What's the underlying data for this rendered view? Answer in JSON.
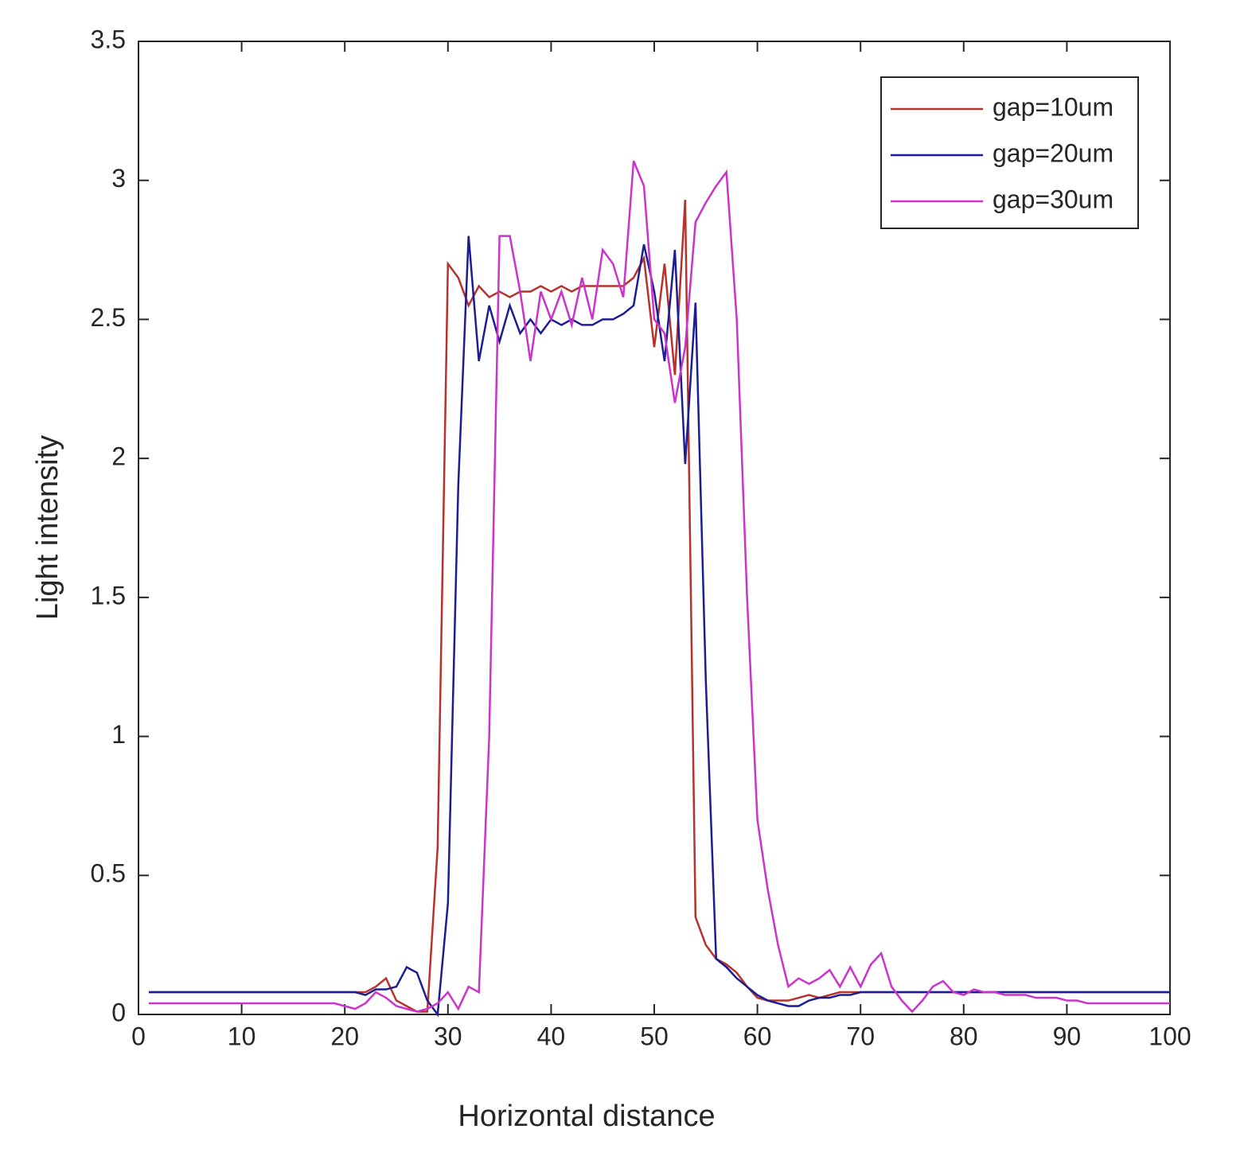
{
  "chart_data": {
    "type": "line",
    "xlabel": "Horizontal distance",
    "ylabel": "Light intensity",
    "x": [
      1,
      2,
      3,
      4,
      5,
      6,
      7,
      8,
      9,
      10,
      11,
      12,
      13,
      14,
      15,
      16,
      17,
      18,
      19,
      20,
      21,
      22,
      23,
      24,
      25,
      26,
      27,
      28,
      29,
      30,
      31,
      32,
      33,
      34,
      35,
      36,
      37,
      38,
      39,
      40,
      41,
      42,
      43,
      44,
      45,
      46,
      47,
      48,
      49,
      50,
      51,
      52,
      53,
      54,
      55,
      56,
      57,
      58,
      59,
      60,
      61,
      62,
      63,
      64,
      65,
      66,
      67,
      68,
      69,
      70,
      71,
      72,
      73,
      74,
      75,
      76,
      77,
      78,
      79,
      80,
      81,
      82,
      83,
      84,
      85,
      86,
      87,
      88,
      89,
      90,
      91,
      92,
      93,
      94,
      95,
      96,
      97,
      98,
      99,
      100
    ],
    "series": [
      {
        "name": "gap=10um",
        "color": "#b8322c",
        "values": [
          0.08,
          0.08,
          0.08,
          0.08,
          0.08,
          0.08,
          0.08,
          0.08,
          0.08,
          0.08,
          0.08,
          0.08,
          0.08,
          0.08,
          0.08,
          0.08,
          0.08,
          0.08,
          0.08,
          0.08,
          0.08,
          0.08,
          0.1,
          0.13,
          0.05,
          0.03,
          0.01,
          0.01,
          0.6,
          2.7,
          2.65,
          2.55,
          2.62,
          2.58,
          2.6,
          2.58,
          2.6,
          2.6,
          2.62,
          2.6,
          2.62,
          2.6,
          2.62,
          2.62,
          2.62,
          2.62,
          2.62,
          2.65,
          2.72,
          2.4,
          2.7,
          2.3,
          2.93,
          0.35,
          0.25,
          0.2,
          0.18,
          0.15,
          0.1,
          0.06,
          0.05,
          0.05,
          0.05,
          0.06,
          0.07,
          0.06,
          0.07,
          0.08,
          0.08,
          0.08,
          0.08,
          0.08,
          0.08,
          0.08,
          0.08,
          0.08,
          0.08,
          0.08,
          0.08,
          0.08,
          0.08,
          0.08,
          0.08,
          0.08,
          0.08,
          0.08,
          0.08,
          0.08,
          0.08,
          0.08,
          0.08,
          0.08,
          0.08,
          0.08,
          0.08,
          0.08,
          0.08,
          0.08,
          0.08,
          0.08
        ]
      },
      {
        "name": "gap=20um",
        "color": "#1c1c94",
        "values": [
          0.08,
          0.08,
          0.08,
          0.08,
          0.08,
          0.08,
          0.08,
          0.08,
          0.08,
          0.08,
          0.08,
          0.08,
          0.08,
          0.08,
          0.08,
          0.08,
          0.08,
          0.08,
          0.08,
          0.08,
          0.08,
          0.07,
          0.09,
          0.09,
          0.1,
          0.17,
          0.15,
          0.05,
          0.0,
          0.4,
          1.9,
          2.8,
          2.35,
          2.55,
          2.42,
          2.55,
          2.45,
          2.5,
          2.45,
          2.5,
          2.48,
          2.5,
          2.48,
          2.48,
          2.5,
          2.5,
          2.52,
          2.55,
          2.77,
          2.6,
          2.35,
          2.75,
          1.98,
          2.56,
          1.2,
          0.2,
          0.17,
          0.13,
          0.1,
          0.07,
          0.05,
          0.04,
          0.03,
          0.03,
          0.05,
          0.06,
          0.06,
          0.07,
          0.07,
          0.08,
          0.08,
          0.08,
          0.08,
          0.08,
          0.08,
          0.08,
          0.08,
          0.08,
          0.08,
          0.08,
          0.08,
          0.08,
          0.08,
          0.08,
          0.08,
          0.08,
          0.08,
          0.08,
          0.08,
          0.08,
          0.08,
          0.08,
          0.08,
          0.08,
          0.08,
          0.08,
          0.08,
          0.08,
          0.08,
          0.08
        ]
      },
      {
        "name": "gap=30um",
        "color": "#cc33cc",
        "values": [
          0.04,
          0.04,
          0.04,
          0.04,
          0.04,
          0.04,
          0.04,
          0.04,
          0.04,
          0.04,
          0.04,
          0.04,
          0.04,
          0.04,
          0.04,
          0.04,
          0.04,
          0.04,
          0.04,
          0.03,
          0.02,
          0.04,
          0.08,
          0.06,
          0.03,
          0.02,
          0.01,
          0.02,
          0.04,
          0.08,
          0.02,
          0.1,
          0.08,
          1.0,
          2.8,
          2.8,
          2.6,
          2.35,
          2.6,
          2.5,
          2.6,
          2.48,
          2.65,
          2.5,
          2.75,
          2.7,
          2.58,
          3.07,
          2.98,
          2.5,
          2.45,
          2.2,
          2.4,
          2.85,
          2.92,
          2.98,
          3.03,
          2.5,
          1.5,
          0.7,
          0.45,
          0.25,
          0.1,
          0.13,
          0.11,
          0.13,
          0.16,
          0.1,
          0.17,
          0.1,
          0.18,
          0.22,
          0.1,
          0.05,
          0.01,
          0.05,
          0.1,
          0.12,
          0.08,
          0.07,
          0.09,
          0.08,
          0.08,
          0.07,
          0.07,
          0.07,
          0.06,
          0.06,
          0.06,
          0.05,
          0.05,
          0.04,
          0.04,
          0.04,
          0.04,
          0.04,
          0.04,
          0.04,
          0.04,
          0.04
        ]
      }
    ],
    "xlim": [
      0,
      100
    ],
    "xticks": [
      0,
      10,
      20,
      30,
      40,
      50,
      60,
      70,
      80,
      90,
      100
    ],
    "ylim": [
      0,
      3.5
    ],
    "yticks": [
      0,
      0.5,
      1,
      1.5,
      2,
      2.5,
      3,
      3.5
    ],
    "grid": false,
    "legend": "northeast"
  }
}
